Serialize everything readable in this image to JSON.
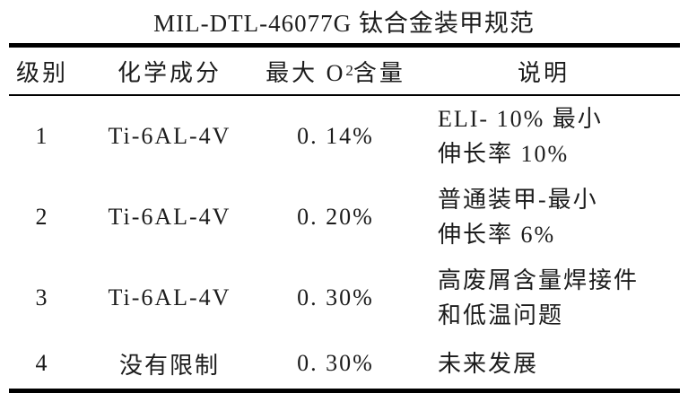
{
  "title": "MIL-DTL-46077G 钛合金装甲规范",
  "table": {
    "headers": {
      "grade": "级别",
      "composition": "化学成分",
      "max_o2_prefix": "最大 O",
      "max_o2_sub": "2",
      "max_o2_suffix": " 含量",
      "description": "说明"
    },
    "rows": [
      {
        "grade": "1",
        "composition": "Ti-6AL-4V",
        "max_o2": "0. 14%",
        "desc_line1": "ELI- 10% 最小",
        "desc_line2": "伸长率 10%"
      },
      {
        "grade": "2",
        "composition": "Ti-6AL-4V",
        "max_o2": "0. 20%",
        "desc_line1": "普通装甲-最小",
        "desc_line2": "伸长率 6%"
      },
      {
        "grade": "3",
        "composition": "Ti-6AL-4V",
        "max_o2": "0. 30%",
        "desc_line1": "高废屑含量焊接件",
        "desc_line2": "和低温问题"
      },
      {
        "grade": "4",
        "composition": "没有限制",
        "max_o2": "0. 30%",
        "desc_line1": "未来发展"
      }
    ]
  },
  "colors": {
    "background": "#ffffff",
    "text": "#1c1c1c",
    "rule": "#000000"
  }
}
